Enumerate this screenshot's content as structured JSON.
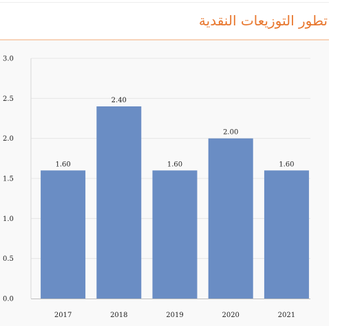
{
  "header": {
    "title": "تطور التوزيعات النقدية"
  },
  "colors": {
    "accent": "#e8772e",
    "bar": "#6a8dc4",
    "header_rule": "#f7d3b9",
    "panel_bg": "#f9f9f9"
  },
  "chart_data": {
    "type": "bar",
    "title": "",
    "xlabel": "",
    "ylabel": "",
    "categories": [
      "2017",
      "2018",
      "2019",
      "2020",
      "2021"
    ],
    "values": [
      1.6,
      2.4,
      1.6,
      2.0,
      1.6
    ],
    "value_labels": [
      "1.60",
      "2.40",
      "1.60",
      "2.00",
      "1.60"
    ],
    "ylim": [
      0,
      3
    ],
    "yticks": [
      "0.0",
      "0.5",
      "1.0",
      "1.5",
      "2.0",
      "2.5",
      "3.0"
    ],
    "grid": true,
    "legend": "none"
  }
}
